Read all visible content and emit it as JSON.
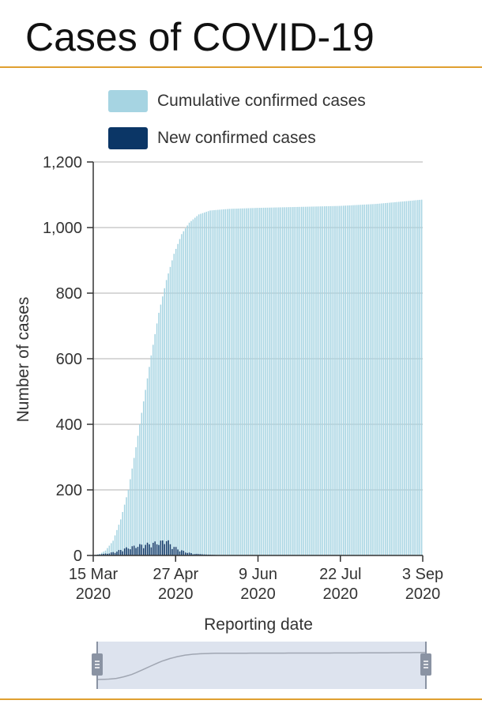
{
  "page": {
    "title": "Cases of COVID-19"
  },
  "legend": {
    "cumulative_label": "Cumulative confirmed cases",
    "new_label": "New confirmed cases"
  },
  "colors": {
    "cumulative": "#a6d4e2",
    "new": "#0b3666",
    "accent_rule": "#e0a030",
    "grid": "#cccccc",
    "navigator_bg": "#dde3ee",
    "navigator_handle": "#8a93a3"
  },
  "chart_data": {
    "type": "bar",
    "title": "Cases of COVID-19",
    "xlabel": "Reporting date",
    "ylabel": "Number of cases",
    "ylim": [
      0,
      1200
    ],
    "y_ticks": [
      "0",
      "200",
      "400",
      "600",
      "800",
      "1,000",
      "1,200"
    ],
    "x_ticks": [
      {
        "line1": "15 Mar",
        "line2": "2020",
        "date": "2020-03-15"
      },
      {
        "line1": "27 Apr",
        "line2": "2020",
        "date": "2020-04-27"
      },
      {
        "line1": "9 Jun",
        "line2": "2020",
        "date": "2020-06-09"
      },
      {
        "line1": "22 Jul",
        "line2": "2020",
        "date": "2020-07-22"
      },
      {
        "line1": "3 Sep",
        "line2": "2020",
        "date": "2020-09-03"
      }
    ],
    "date_range": [
      "2020-03-15",
      "2020-09-03"
    ],
    "grid": true,
    "legend_position": "top-left",
    "series": [
      {
        "name": "Cumulative confirmed cases",
        "points": [
          [
            "2020-03-15",
            1
          ],
          [
            "2020-03-18",
            5
          ],
          [
            "2020-03-21",
            15
          ],
          [
            "2020-03-25",
            45
          ],
          [
            "2020-03-29",
            110
          ],
          [
            "2020-04-02",
            200
          ],
          [
            "2020-04-06",
            330
          ],
          [
            "2020-04-10",
            470
          ],
          [
            "2020-04-14",
            610
          ],
          [
            "2020-04-18",
            740
          ],
          [
            "2020-04-22",
            840
          ],
          [
            "2020-04-26",
            920
          ],
          [
            "2020-04-30",
            980
          ],
          [
            "2020-05-04",
            1015
          ],
          [
            "2020-05-09",
            1040
          ],
          [
            "2020-05-15",
            1052
          ],
          [
            "2020-05-25",
            1057
          ],
          [
            "2020-06-09",
            1060
          ],
          [
            "2020-07-01",
            1063
          ],
          [
            "2020-07-22",
            1066
          ],
          [
            "2020-08-10",
            1072
          ],
          [
            "2020-08-25",
            1080
          ],
          [
            "2020-09-03",
            1085
          ]
        ]
      },
      {
        "name": "New confirmed cases",
        "points": [
          [
            "2020-03-15",
            1
          ],
          [
            "2020-03-19",
            4
          ],
          [
            "2020-03-23",
            8
          ],
          [
            "2020-03-27",
            14
          ],
          [
            "2020-03-30",
            22
          ],
          [
            "2020-04-03",
            28
          ],
          [
            "2020-04-07",
            34
          ],
          [
            "2020-04-11",
            38
          ],
          [
            "2020-04-15",
            42
          ],
          [
            "2020-04-20",
            48
          ],
          [
            "2020-04-22",
            55
          ],
          [
            "2020-04-24",
            38
          ],
          [
            "2020-04-28",
            22
          ],
          [
            "2020-05-02",
            12
          ],
          [
            "2020-05-06",
            6
          ],
          [
            "2020-05-12",
            3
          ],
          [
            "2020-05-20",
            1
          ],
          [
            "2020-06-01",
            0
          ],
          [
            "2020-09-03",
            0
          ]
        ]
      }
    ]
  }
}
